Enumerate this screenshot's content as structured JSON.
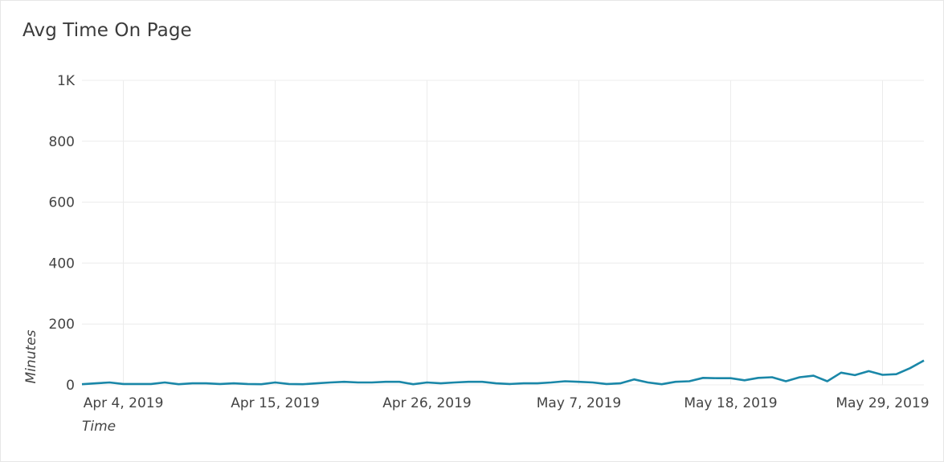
{
  "chart_data": {
    "type": "line",
    "title": "Avg Time On Page",
    "xlabel": "Time",
    "ylabel": "Minutes",
    "ylim": [
      0,
      1000
    ],
    "yticks": [
      0,
      200,
      400,
      600,
      800,
      1000
    ],
    "ytick_labels": [
      "0",
      "200",
      "400",
      "600",
      "800",
      "1K"
    ],
    "xlim": [
      "2019-04-01",
      "2019-06-01"
    ],
    "xticks": [
      "2019-04-04",
      "2019-04-15",
      "2019-04-26",
      "2019-05-07",
      "2019-05-18",
      "2019-05-29"
    ],
    "xtick_labels": [
      "Apr 4, 2019",
      "Apr 15, 2019",
      "Apr 26, 2019",
      "May 7, 2019",
      "May 18, 2019",
      "May 29, 2019"
    ],
    "grid": true,
    "line_color": "#1a87a8",
    "series": [
      {
        "x": [
          "2019-04-01",
          "2019-04-02",
          "2019-04-03",
          "2019-04-04",
          "2019-04-05",
          "2019-04-06",
          "2019-04-07",
          "2019-04-08",
          "2019-04-09",
          "2019-04-10",
          "2019-04-11",
          "2019-04-12",
          "2019-04-13",
          "2019-04-14",
          "2019-04-15",
          "2019-04-16",
          "2019-04-17",
          "2019-04-18",
          "2019-04-19",
          "2019-04-20",
          "2019-04-21",
          "2019-04-22",
          "2019-04-23",
          "2019-04-24",
          "2019-04-25",
          "2019-04-26",
          "2019-04-27",
          "2019-04-28",
          "2019-04-29",
          "2019-04-30",
          "2019-05-01",
          "2019-05-02",
          "2019-05-03",
          "2019-05-04",
          "2019-05-05",
          "2019-05-06",
          "2019-05-07",
          "2019-05-08",
          "2019-05-09",
          "2019-05-10",
          "2019-05-11",
          "2019-05-12",
          "2019-05-13",
          "2019-05-14",
          "2019-05-15",
          "2019-05-16",
          "2019-05-17",
          "2019-05-18",
          "2019-05-19",
          "2019-05-20",
          "2019-05-21",
          "2019-05-22",
          "2019-05-23",
          "2019-05-24",
          "2019-05-25",
          "2019-05-26",
          "2019-05-27",
          "2019-05-28",
          "2019-05-29",
          "2019-05-30",
          "2019-05-31",
          "2019-06-01"
        ],
        "values": [
          2,
          5,
          8,
          3,
          3,
          3,
          8,
          2,
          5,
          5,
          3,
          5,
          3,
          2,
          8,
          3,
          2,
          5,
          8,
          10,
          8,
          8,
          10,
          10,
          2,
          8,
          5,
          8,
          10,
          10,
          5,
          3,
          5,
          5,
          8,
          12,
          10,
          8,
          3,
          5,
          18,
          8,
          2,
          10,
          12,
          23,
          22,
          22,
          15,
          23,
          25,
          12,
          25,
          30,
          12,
          40,
          32,
          45,
          33,
          35,
          55,
          80
        ]
      }
    ]
  }
}
